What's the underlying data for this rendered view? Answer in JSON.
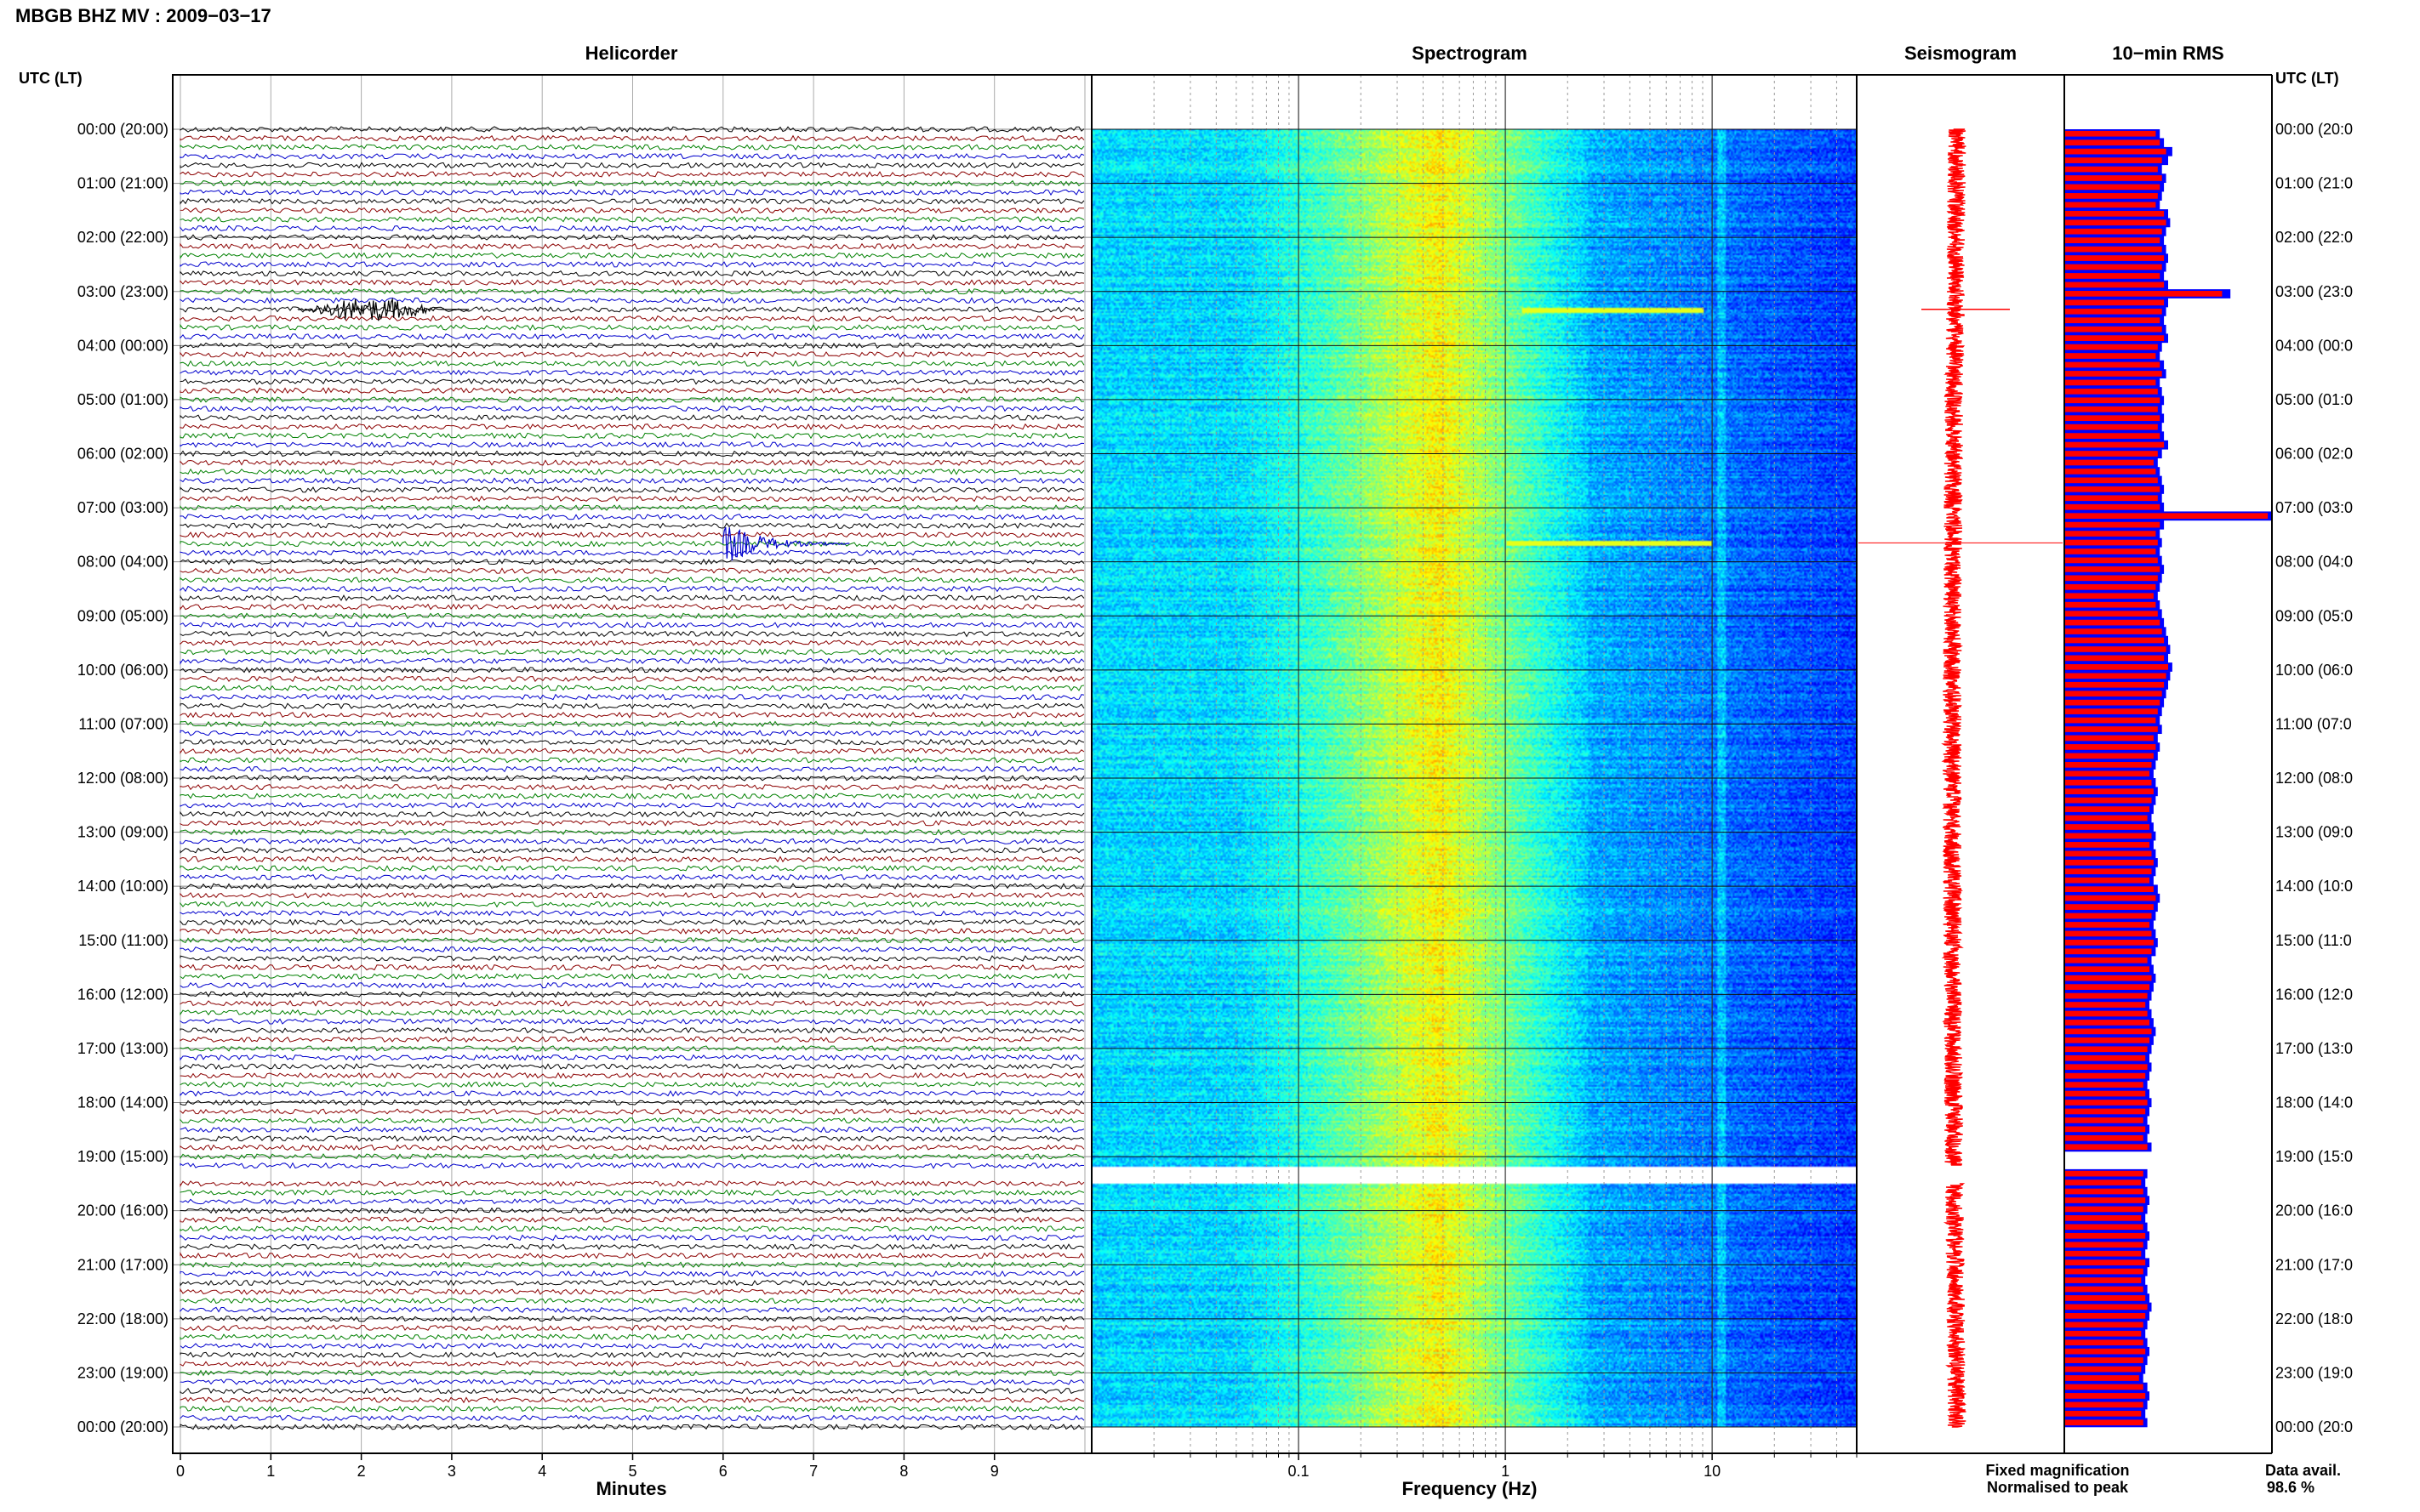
{
  "header": {
    "title": "MBGB BHZ MV : 2009−03−17"
  },
  "panels": {
    "helicorder": "Helicorder",
    "spectrogram": "Spectrogram",
    "seismogram": "Seismogram",
    "rms": "10−min RMS"
  },
  "axes": {
    "time_header": "UTC (LT)",
    "minutes_label": "Minutes",
    "frequency_label": "Frequency (Hz)",
    "minute_ticks": [
      "0",
      "1",
      "2",
      "3",
      "4",
      "5",
      "6",
      "7",
      "8",
      "9"
    ],
    "frequency_ticks": [
      "0.1",
      "1",
      "10"
    ]
  },
  "legend": {
    "fixed": "Fixed magnification",
    "normalised": "Normalised to peak",
    "fixed_color": "#0000ff",
    "normalised_color": "#ff0000"
  },
  "footer": {
    "data_avail_label": "Data avail.",
    "data_avail_value": "98.6 %"
  },
  "colors": {
    "trace_colors": [
      "#000000",
      "#8b0000",
      "#008000",
      "#0000cc"
    ]
  },
  "chart_data": {
    "type": "heatmap",
    "time_labels_left": [
      "00:00 (20:00)",
      "01:00 (21:00)",
      "02:00 (22:00)",
      "03:00 (23:00)",
      "04:00 (00:00)",
      "05:00 (01:00)",
      "06:00 (02:00)",
      "07:00 (03:00)",
      "08:00 (04:00)",
      "09:00 (05:00)",
      "10:00 (06:00)",
      "11:00 (07:00)",
      "12:00 (08:00)",
      "13:00 (09:00)",
      "14:00 (10:00)",
      "15:00 (11:00)",
      "16:00 (12:00)",
      "17:00 (13:00)",
      "18:00 (14:00)",
      "19:00 (15:00)",
      "20:00 (16:00)",
      "21:00 (17:00)",
      "22:00 (18:00)",
      "23:00 (19:00)",
      "00:00 (20:00)"
    ],
    "time_labels_right": [
      "00:00 (20:0",
      "01:00 (21:0",
      "02:00 (22:0",
      "03:00 (23:0",
      "04:00 (00:0",
      "05:00 (01:0",
      "06:00 (02:0",
      "07:00 (03:0",
      "08:00 (04:0",
      "09:00 (05:0",
      "10:00 (06:0",
      "11:00 (07:0",
      "12:00 (08:0",
      "13:00 (09:0",
      "14:00 (10:0",
      "15:00 (11:0",
      "16:00 (12:0",
      "17:00 (13:0",
      "18:00 (14:0",
      "19:00 (15:0",
      "20:00 (16:0",
      "21:00 (17:0",
      "22:00 (18:0",
      "23:00 (19:0",
      "00:00 (20:0"
    ],
    "rms_fixed": [
      0.46,
      0.48,
      0.52,
      0.5,
      0.47,
      0.49,
      0.48,
      0.47,
      0.46,
      0.5,
      0.51,
      0.49,
      0.48,
      0.49,
      0.5,
      0.49,
      0.48,
      0.5,
      0.8,
      0.5,
      0.49,
      0.48,
      0.49,
      0.5,
      0.47,
      0.46,
      0.48,
      0.49,
      0.46,
      0.47,
      0.48,
      0.47,
      0.48,
      0.47,
      0.48,
      0.5,
      0.47,
      0.45,
      0.46,
      0.47,
      0.48,
      0.47,
      0.48,
      1.0,
      0.48,
      0.46,
      0.47,
      0.46,
      0.47,
      0.48,
      0.47,
      0.46,
      0.45,
      0.46,
      0.47,
      0.48,
      0.49,
      0.5,
      0.51,
      0.5,
      0.52,
      0.51,
      0.5,
      0.49,
      0.48,
      0.47,
      0.46,
      0.47,
      0.45,
      0.46,
      0.45,
      0.44,
      0.43,
      0.44,
      0.45,
      0.44,
      0.43,
      0.42,
      0.43,
      0.44,
      0.43,
      0.44,
      0.45,
      0.44,
      0.43,
      0.45,
      0.46,
      0.45,
      0.44,
      0.43,
      0.44,
      0.45,
      0.44,
      0.42,
      0.43,
      0.44,
      0.43,
      0.42,
      0.41,
      0.42,
      0.43,
      0.44,
      0.43,
      0.42,
      0.41,
      0.42,
      0.41,
      0.4,
      0.41,
      0.42,
      0.41,
      0.4,
      0.41,
      0.4,
      0.42,
      null,
      null,
      0.4,
      0.39,
      0.4,
      0.41,
      0.4,
      0.39,
      0.4,
      0.41,
      0.4,
      0.39,
      0.41,
      0.4,
      0.39,
      0.4,
      0.41,
      0.42,
      0.41,
      0.4,
      0.39,
      0.4,
      0.41,
      0.4,
      0.39,
      0.38,
      0.4,
      0.41,
      0.4,
      0.39,
      0.4
    ],
    "rms_normalised": [
      0.44,
      0.46,
      0.49,
      0.47,
      0.45,
      0.47,
      0.46,
      0.45,
      0.44,
      0.48,
      0.49,
      0.47,
      0.46,
      0.47,
      0.48,
      0.47,
      0.46,
      0.48,
      0.76,
      0.48,
      0.47,
      0.46,
      0.47,
      0.48,
      0.45,
      0.44,
      0.46,
      0.47,
      0.44,
      0.45,
      0.46,
      0.45,
      0.46,
      0.45,
      0.46,
      0.48,
      0.45,
      0.43,
      0.44,
      0.45,
      0.46,
      0.45,
      0.46,
      0.98,
      0.46,
      0.44,
      0.45,
      0.44,
      0.45,
      0.46,
      0.45,
      0.44,
      0.43,
      0.44,
      0.45,
      0.46,
      0.47,
      0.48,
      0.49,
      0.48,
      0.5,
      0.49,
      0.48,
      0.47,
      0.46,
      0.45,
      0.44,
      0.45,
      0.43,
      0.44,
      0.43,
      0.42,
      0.41,
      0.42,
      0.43,
      0.42,
      0.41,
      0.4,
      0.41,
      0.42,
      0.41,
      0.42,
      0.43,
      0.42,
      0.41,
      0.43,
      0.44,
      0.43,
      0.42,
      0.41,
      0.42,
      0.43,
      0.42,
      0.4,
      0.41,
      0.42,
      0.41,
      0.4,
      0.39,
      0.4,
      0.41,
      0.42,
      0.41,
      0.4,
      0.39,
      0.4,
      0.39,
      0.38,
      0.39,
      0.4,
      0.39,
      0.38,
      0.39,
      0.38,
      0.4,
      null,
      null,
      0.38,
      0.37,
      0.38,
      0.39,
      0.38,
      0.37,
      0.38,
      0.39,
      0.38,
      0.37,
      0.39,
      0.38,
      0.37,
      0.38,
      0.39,
      0.4,
      0.39,
      0.38,
      0.37,
      0.38,
      0.39,
      0.38,
      0.37,
      0.36,
      0.38,
      0.39,
      0.38,
      0.37,
      0.38
    ],
    "events": [
      {
        "time_utc": "03:20",
        "minute_start": 1.3,
        "minute_end": 3.2,
        "color": "#000000"
      },
      {
        "time_utc": "07:40",
        "minute_start": 6.0,
        "minute_end": 7.4,
        "color": "#0000cc"
      }
    ],
    "data_gap_utc": [
      "19:10",
      "19:30"
    ]
  }
}
